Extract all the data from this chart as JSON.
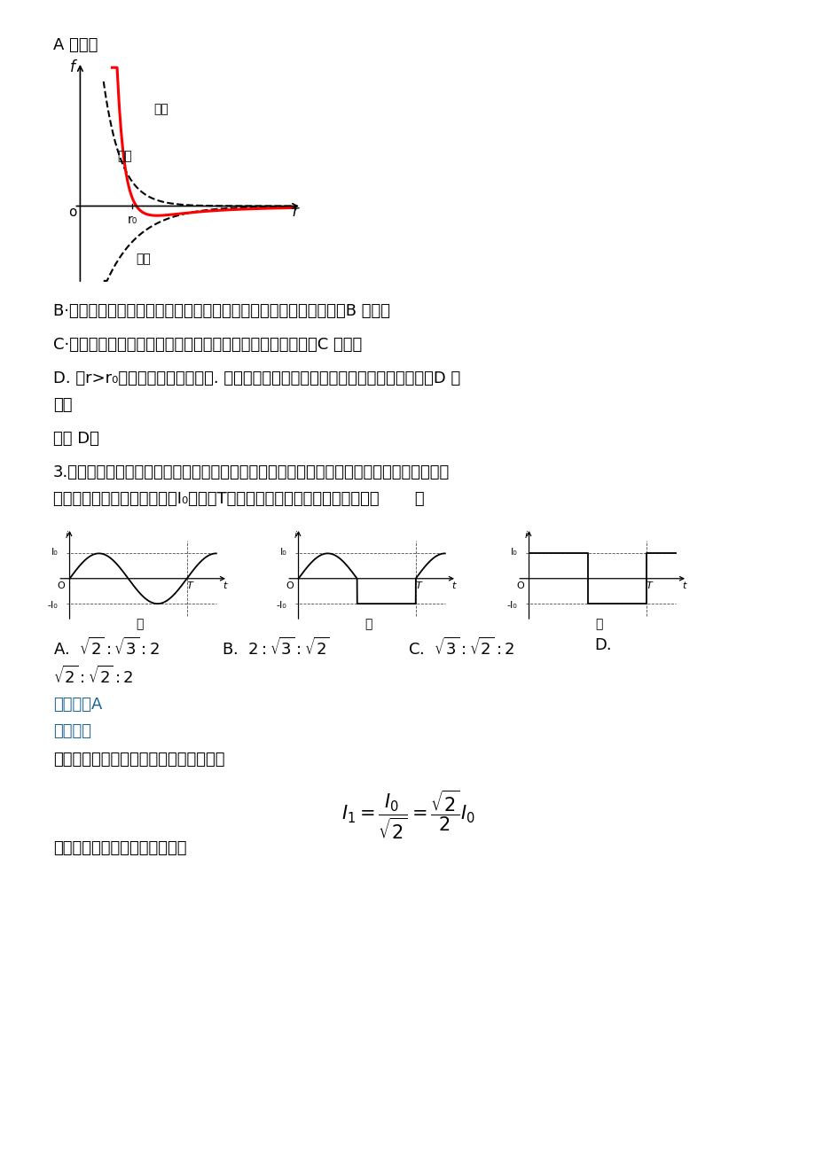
{
  "bg_color": "#ffffff",
  "text_color": "#000000",
  "blue_color": "#1a6496",
  "red_color": "#cc0000",
  "paragraph_A_cuowu": "A 错误：",
  "paragraph_B": "B·给自行车打气时气筒压下后反弹，是由活塞上下的压强差造成的，B 错误；",
  "paragraph_C": "C·用显微镜观察布朗运动，观察到的是小颗粒的无规则运动，C 错误；",
  "paragraph_D1": "D. 当r>r₀，分子力表现为引力时. 分子距离增大时，分子力做负功，分子势能增大，D 正",
  "paragraph_D2": "确；",
  "paragraph_guxuan": "故选 D。",
  "paragraph_q3_1": "3.如图所示，甲图为正弦式交流电，乙图正值部分按正弦规律变化，负值部分电流恒定，丙图",
  "paragraph_q3_2": "为方波式交流电，三个图中的I₀和周期T相同。三种交流电的有效值之比为（       ）",
  "answer_label": "【答案】A",
  "jiexi_label": "【解析】",
  "xiangxi_label": "【详解】图甲是正弦交流电，有效值为：",
  "last_line": "图乙：根据电流的热效应，有："
}
